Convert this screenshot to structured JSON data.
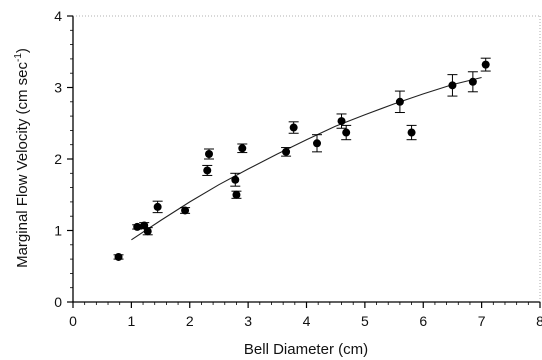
{
  "chart_data": {
    "type": "scatter",
    "title": "",
    "xlabel": "Bell Diameter (cm)",
    "ylabel_main": "Marginal Flow Velocity (cm sec",
    "ylabel_sup": "-1",
    "ylabel_close": ")",
    "xlim": [
      0,
      8
    ],
    "ylim": [
      0,
      4
    ],
    "x_ticks": [
      "0",
      "1",
      "2",
      "3",
      "4",
      "5",
      "6",
      "7",
      "8"
    ],
    "y_ticks": [
      "0",
      "1",
      "2",
      "3",
      "4"
    ],
    "grid": false,
    "series": [
      {
        "points": [
          {
            "x": 0.78,
            "y": 0.63,
            "err": 0.03
          },
          {
            "x": 1.1,
            "y": 1.05,
            "err": 0.03
          },
          {
            "x": 1.22,
            "y": 1.07,
            "err": 0.04
          },
          {
            "x": 1.28,
            "y": 0.99,
            "err": 0.05
          },
          {
            "x": 1.45,
            "y": 1.33,
            "err": 0.08
          },
          {
            "x": 1.92,
            "y": 1.28,
            "err": 0.04
          },
          {
            "x": 2.3,
            "y": 1.84,
            "err": 0.07
          },
          {
            "x": 2.33,
            "y": 2.07,
            "err": 0.07
          },
          {
            "x": 2.78,
            "y": 1.71,
            "err": 0.09
          },
          {
            "x": 2.8,
            "y": 1.5,
            "err": 0.05
          },
          {
            "x": 2.9,
            "y": 2.15,
            "err": 0.06
          },
          {
            "x": 3.65,
            "y": 2.1,
            "err": 0.06
          },
          {
            "x": 3.78,
            "y": 2.44,
            "err": 0.08
          },
          {
            "x": 4.18,
            "y": 2.22,
            "err": 0.12
          },
          {
            "x": 4.6,
            "y": 2.53,
            "err": 0.1
          },
          {
            "x": 4.68,
            "y": 2.37,
            "err": 0.1
          },
          {
            "x": 5.6,
            "y": 2.8,
            "err": 0.15
          },
          {
            "x": 5.8,
            "y": 2.37,
            "err": 0.1
          },
          {
            "x": 6.5,
            "y": 3.03,
            "err": 0.15
          },
          {
            "x": 6.85,
            "y": 3.08,
            "err": 0.14
          },
          {
            "x": 7.07,
            "y": 3.32,
            "err": 0.09
          }
        ]
      }
    ],
    "fit_curve": {
      "x": [
        1.0,
        1.5,
        2.0,
        2.5,
        3.0,
        3.5,
        4.0,
        4.5,
        5.0,
        5.5,
        6.0,
        6.5,
        7.0
      ],
      "y": [
        0.87,
        1.14,
        1.4,
        1.64,
        1.86,
        2.07,
        2.27,
        2.46,
        2.62,
        2.77,
        2.91,
        3.04,
        3.14
      ]
    }
  }
}
